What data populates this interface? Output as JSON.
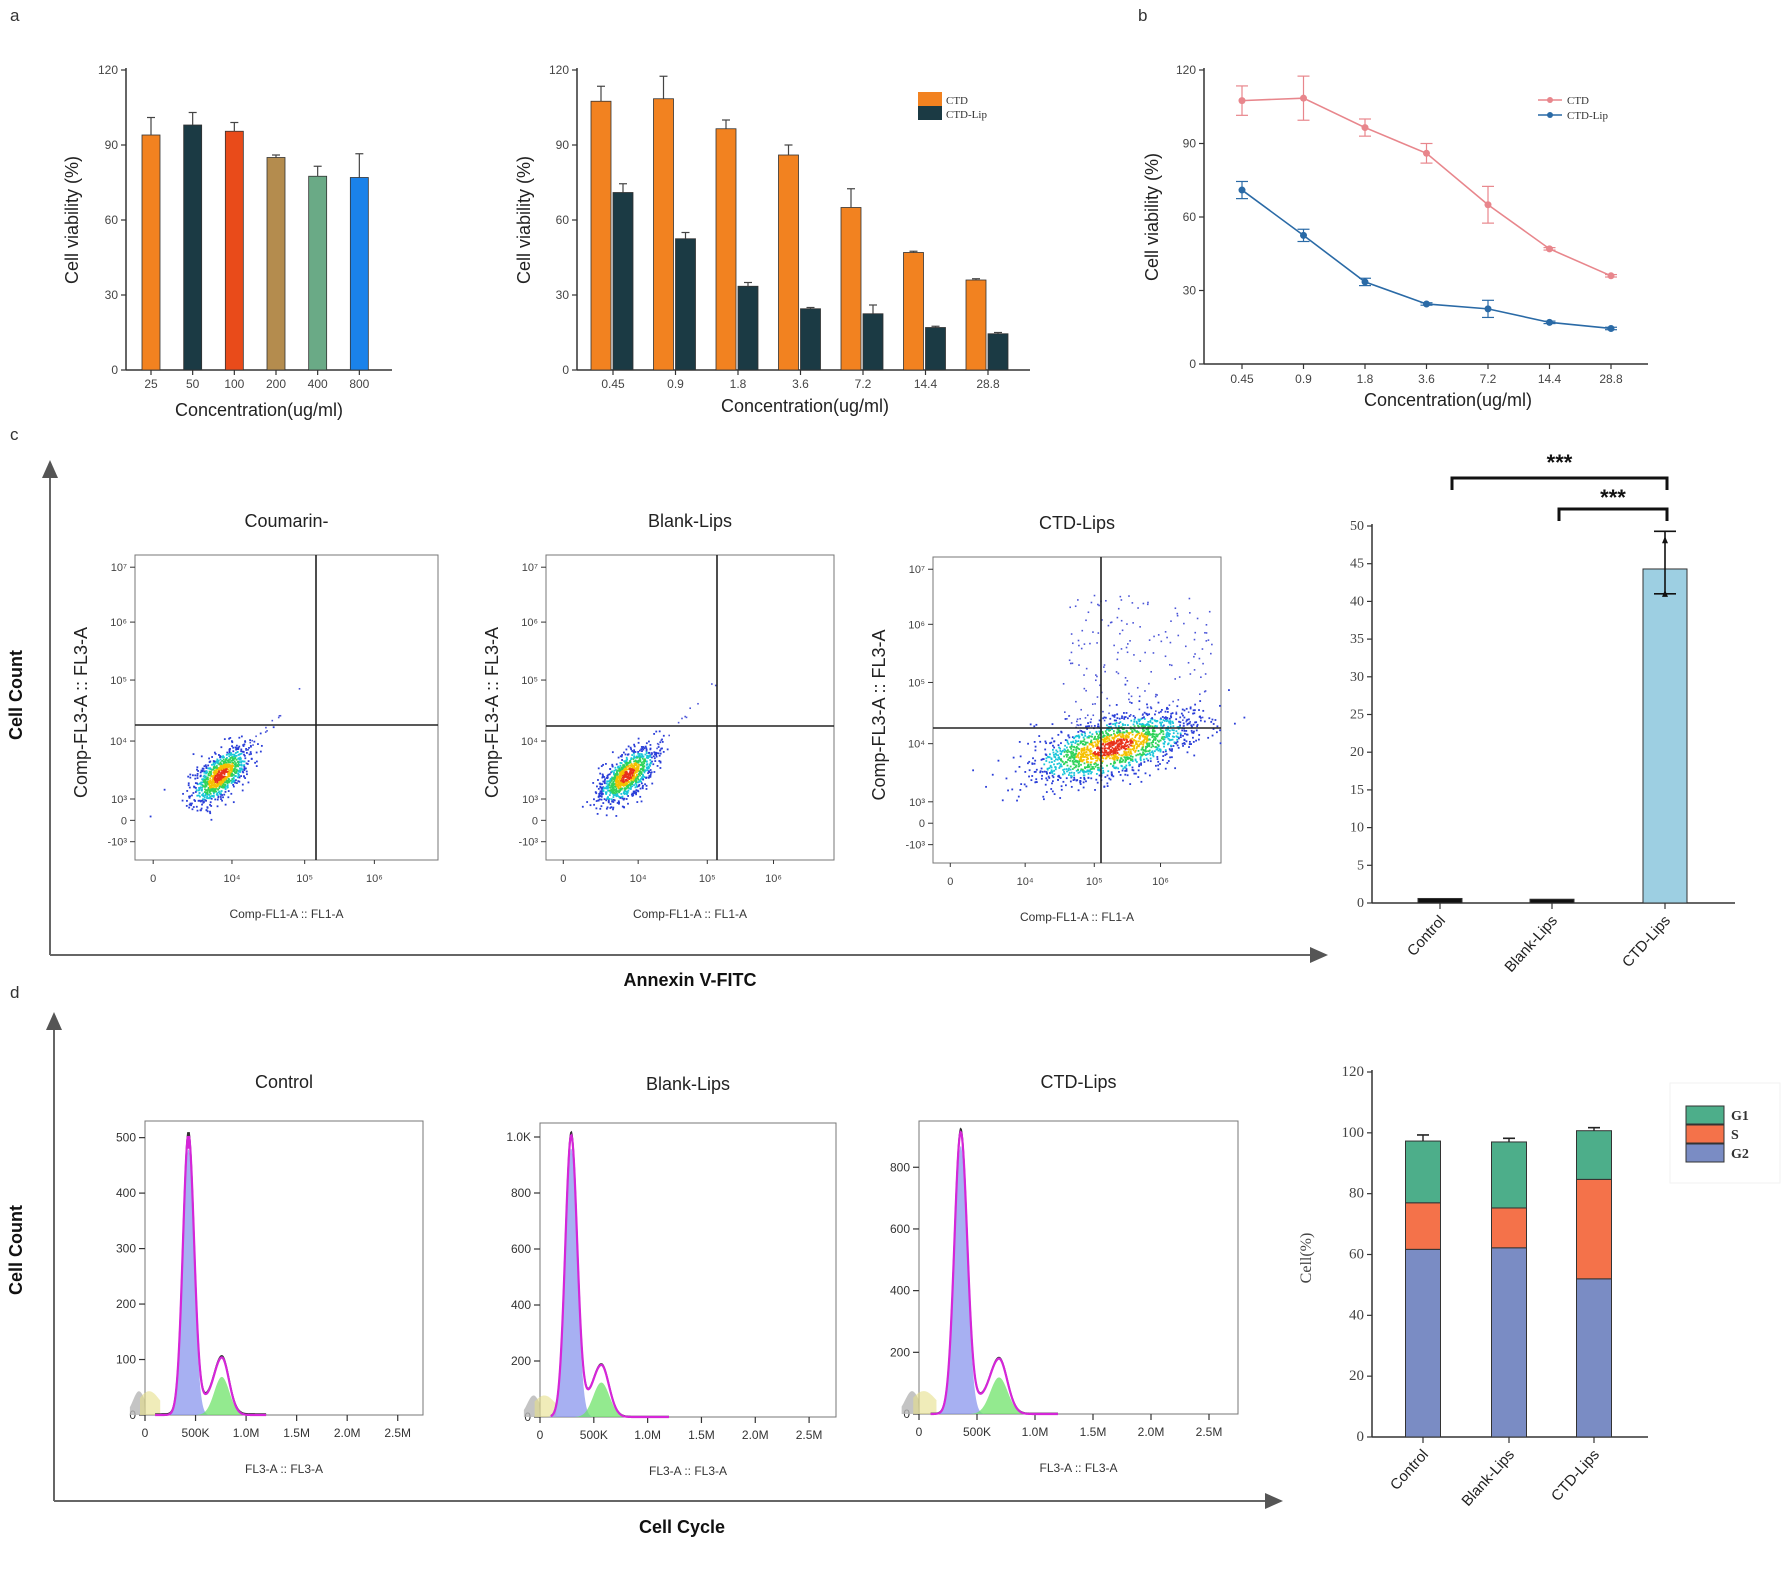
{
  "panel_labels": {
    "a": "a",
    "b": "b",
    "c": "c",
    "d": "d"
  },
  "colors": {
    "ctd_orange": "#f28220",
    "ctd_lip_dark": "#1b3a44",
    "line_ctd": "#e8868c",
    "line_ctd_lip": "#2a6aa6",
    "apoptosis_bar": "#9dcfe2",
    "g1": "#4dae8a",
    "s": "#f4724a",
    "g2": "#7a8cc4"
  },
  "chart_data": [
    {
      "id": "a1",
      "type": "bar",
      "title": "",
      "xlabel": "Concentration(ug/ml)",
      "ylabel": "Cell viability (%)",
      "ylim": [
        0,
        120
      ],
      "yticks": [
        0,
        30,
        60,
        90,
        120
      ],
      "categories": [
        "25",
        "50",
        "100",
        "200",
        "400",
        "800"
      ],
      "values": [
        94,
        98,
        95.5,
        85,
        77.5,
        77
      ],
      "errors": [
        7,
        5,
        3.5,
        1,
        4,
        9.5
      ],
      "bar_colors": [
        "#f28220",
        "#1b3a44",
        "#e94b1a",
        "#b48c4e",
        "#6aaa86",
        "#1a82ea"
      ],
      "grid": false
    },
    {
      "id": "a2",
      "type": "bar",
      "title": "",
      "xlabel": "Concentration(ug/ml)",
      "ylabel": "Cell viability (%)",
      "ylim": [
        0,
        120
      ],
      "yticks": [
        0,
        30,
        60,
        90,
        120
      ],
      "categories": [
        "0.45",
        "0.9",
        "1.8",
        "3.6",
        "7.2",
        "14.4",
        "28.8"
      ],
      "series": [
        {
          "name": "CTD",
          "values": [
            107.5,
            108.5,
            96.5,
            86,
            65,
            47,
            36
          ],
          "errors": [
            6,
            9,
            3.5,
            4,
            7.5,
            0.5,
            0.5
          ]
        },
        {
          "name": "CTD-Lip",
          "values": [
            71,
            52.5,
            33.5,
            24.5,
            22.5,
            17,
            14.5
          ],
          "errors": [
            3.5,
            2.5,
            1.5,
            0.5,
            3.5,
            0.5,
            0.5
          ]
        }
      ],
      "legend": "top-right",
      "grid": false
    },
    {
      "id": "b",
      "type": "line",
      "title": "",
      "xlabel": "Concentration(ug/ml)",
      "ylabel": "Cell viability (%)",
      "ylim": [
        0,
        120
      ],
      "yticks": [
        0,
        30,
        60,
        90,
        120
      ],
      "categories": [
        "0.45",
        "0.9",
        "1.8",
        "3.6",
        "7.2",
        "14.4",
        "28.8"
      ],
      "series": [
        {
          "name": "CTD",
          "values": [
            107.5,
            108.5,
            96.5,
            86,
            65,
            47,
            36
          ],
          "errors": [
            6,
            9,
            3.5,
            4,
            7.5,
            0.5,
            0.5
          ]
        },
        {
          "name": "CTD-Lip",
          "values": [
            71,
            52.5,
            33.5,
            24.5,
            22.5,
            17,
            14.5
          ],
          "errors": [
            3.5,
            2.5,
            1.5,
            0.5,
            3.5,
            0.5,
            0.5
          ]
        }
      ],
      "legend": "top-right",
      "grid": false
    },
    {
      "id": "c-flow",
      "type": "scatter",
      "outer_ylabel": "Cell Count",
      "outer_xlabel": "Annexin V-FITC",
      "plots": [
        {
          "title": "Coumarin-",
          "xlabel": "Comp-FL1-A :: FL1-A",
          "ylabel": "Comp-FL3-A :: FL3-A",
          "population": "viable-low"
        },
        {
          "title": "Blank-Lips",
          "xlabel": "Comp-FL1-A :: FL1-A",
          "ylabel": "Comp-FL3-A :: FL3-A",
          "population": "viable-low"
        },
        {
          "title": "CTD-Lips",
          "xlabel": "Comp-FL1-A :: FL1-A",
          "ylabel": "Comp-FL3-A :: FL3-A",
          "population": "apoptotic-shift"
        }
      ],
      "yticks": [
        "10⁷",
        "10⁶",
        "10⁵",
        "10⁴",
        "10³",
        "0",
        "-10³"
      ],
      "xticks": [
        "0",
        "10⁴",
        "10⁵",
        "10⁶"
      ]
    },
    {
      "id": "c-bar",
      "type": "bar",
      "title": "",
      "xlabel": "",
      "ylabel": "",
      "ylim": [
        0,
        50
      ],
      "yticks": [
        0,
        5,
        10,
        15,
        20,
        25,
        30,
        35,
        40,
        45,
        50
      ],
      "categories": [
        "Control",
        "Blank-Lips",
        "CTD-Lips"
      ],
      "values": [
        0.6,
        0.5,
        44.3
      ],
      "error_low": [
        0,
        0,
        41
      ],
      "error_high": [
        0,
        0,
        49.3
      ],
      "significance": [
        {
          "from": "Control",
          "to": "CTD-Lips",
          "label": "***"
        },
        {
          "from": "Blank-Lips",
          "to": "CTD-Lips",
          "label": "***"
        }
      ],
      "grid": false
    },
    {
      "id": "d-hist",
      "type": "area",
      "outer_ylabel": "Cell Count",
      "outer_xlabel": "Cell Cycle",
      "plots": [
        {
          "title": "Control",
          "xlabel": "FL3-A :: FL3-A",
          "yticks": [
            "0",
            "100",
            "200",
            "300",
            "400",
            "500"
          ],
          "ymax": 530,
          "peak1": {
            "x": 430,
            "y": 480
          },
          "peak2": {
            "x": 760,
            "y": 78
          }
        },
        {
          "title": "Blank-Lips",
          "xlabel": "FL3-A :: FL3-A",
          "yticks": [
            "0",
            "200",
            "400",
            "600",
            "800",
            "1.0K"
          ],
          "ymax": 1050,
          "peak1": {
            "x": 290,
            "y": 960
          },
          "peak2": {
            "x": 570,
            "y": 140
          }
        },
        {
          "title": "CTD-Lips",
          "xlabel": "FL3-A :: FL3-A",
          "yticks": [
            "0",
            "200",
            "400",
            "600",
            "800"
          ],
          "ymax": 950,
          "peak1": {
            "x": 360,
            "y": 870
          },
          "peak2": {
            "x": 690,
            "y": 135
          }
        }
      ],
      "xticks": [
        "0",
        "500K",
        "1.0M",
        "1.5M",
        "2.0M",
        "2.5M"
      ],
      "xlim": [
        0,
        2750000
      ]
    },
    {
      "id": "d-bar",
      "type": "bar",
      "stacked": true,
      "title": "",
      "xlabel": "",
      "ylabel": "Cell(%)",
      "ylim": [
        0,
        120
      ],
      "yticks": [
        0,
        20,
        40,
        60,
        80,
        100,
        120
      ],
      "categories": [
        "Control",
        "Blank-Lips",
        "CTD-Lips"
      ],
      "series": [
        {
          "name": "G2",
          "values": [
            61.7,
            62.2,
            52
          ],
          "errors": [
            1,
            1,
            1.5
          ]
        },
        {
          "name": "S",
          "values": [
            15.3,
            13.1,
            32.7
          ],
          "errors": [
            0.8,
            0.8,
            1
          ]
        },
        {
          "name": "G1",
          "values": [
            20.3,
            21.7,
            16
          ],
          "errors": [
            2,
            1.2,
            1
          ]
        }
      ],
      "legend_order": [
        "G1",
        "S",
        "G2"
      ],
      "legend": "top-right",
      "grid": false
    }
  ]
}
